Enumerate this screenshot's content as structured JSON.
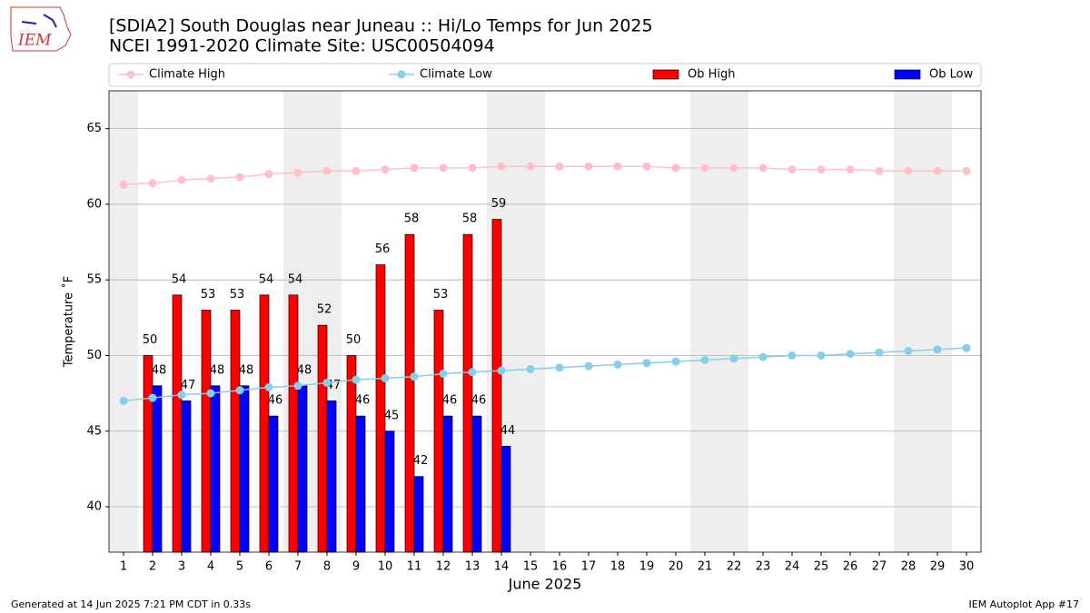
{
  "chart_data": {
    "type": "bar_line",
    "logo_text": "IEM",
    "title": "[SDIA2] South Douglas near Juneau :: Hi/Lo Temps for Jun 2025",
    "subtitle": "NCEI 1991-2020 Climate Site: USC00504094",
    "xlabel": "June 2025",
    "ylabel": "Temperature ˚F",
    "footer_left": "Generated at 14 Jun 2025 7:21 PM CDT in 0.33s",
    "footer_right": "IEM Autoplot App #17",
    "x": [
      1,
      2,
      3,
      4,
      5,
      6,
      7,
      8,
      9,
      10,
      11,
      12,
      13,
      14,
      15,
      16,
      17,
      18,
      19,
      20,
      21,
      22,
      23,
      24,
      25,
      26,
      27,
      28,
      29,
      30
    ],
    "xlim": [
      0.5,
      30.5
    ],
    "xticks": [
      1,
      2,
      3,
      4,
      5,
      6,
      7,
      8,
      9,
      10,
      11,
      12,
      13,
      14,
      15,
      16,
      17,
      18,
      19,
      20,
      21,
      22,
      23,
      24,
      25,
      26,
      27,
      28,
      29,
      30
    ],
    "ylim": [
      37,
      67.5
    ],
    "yticks": [
      40,
      45,
      50,
      55,
      60,
      65
    ],
    "grid": true,
    "legend": "top",
    "shaded_days": [
      1,
      7,
      8,
      14,
      15,
      21,
      22,
      28,
      29
    ],
    "shade_color": "#eeeeee",
    "series": [
      {
        "name": "Climate High",
        "kind": "line",
        "color": "#ffc0cb",
        "values": [
          61.3,
          61.4,
          61.6,
          61.7,
          61.8,
          62.0,
          62.1,
          62.2,
          62.2,
          62.3,
          62.4,
          62.4,
          62.4,
          62.5,
          62.5,
          62.5,
          62.5,
          62.5,
          62.5,
          62.4,
          62.4,
          62.4,
          62.4,
          62.3,
          62.3,
          62.3,
          62.2,
          62.2,
          62.2,
          62.2
        ]
      },
      {
        "name": "Climate Low",
        "kind": "line",
        "color": "#87ceeb",
        "values": [
          47.0,
          47.2,
          47.4,
          47.5,
          47.7,
          47.9,
          48.0,
          48.2,
          48.4,
          48.5,
          48.6,
          48.8,
          48.9,
          49.0,
          49.1,
          49.2,
          49.3,
          49.4,
          49.5,
          49.6,
          49.7,
          49.8,
          49.9,
          50.0,
          50.0,
          50.1,
          50.2,
          50.3,
          50.4,
          50.5
        ]
      },
      {
        "name": "Ob High",
        "kind": "bar",
        "color": "#ff0000",
        "values": [
          null,
          50,
          54,
          53,
          53,
          54,
          54,
          52,
          50,
          56,
          58,
          53,
          58,
          59,
          null,
          null,
          null,
          null,
          null,
          null,
          null,
          null,
          null,
          null,
          null,
          null,
          null,
          null,
          null,
          null
        ]
      },
      {
        "name": "Ob Low",
        "kind": "bar",
        "color": "#0000ff",
        "values": [
          null,
          48,
          47,
          48,
          48,
          46,
          48,
          47,
          46,
          45,
          42,
          46,
          46,
          44,
          null,
          null,
          null,
          null,
          null,
          null,
          null,
          null,
          null,
          null,
          null,
          null,
          null,
          null,
          null,
          null
        ]
      }
    ]
  }
}
